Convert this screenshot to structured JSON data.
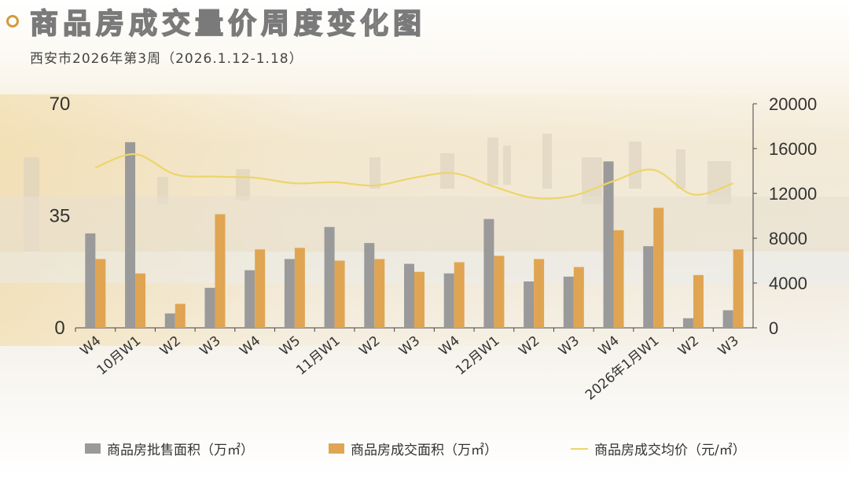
{
  "title": "商品房成交量价周度变化图",
  "subtitle": "西安市2026年第3周（2026.1.12-1.18）",
  "colors": {
    "supply": "#9a9a9a",
    "deal": "#e0a552",
    "price": "#ecd56a",
    "accent": "#d39a3a"
  },
  "chart_data": {
    "type": "bar",
    "categories": [
      "W4",
      "10月W1",
      "W2",
      "W3",
      "W4",
      "W5",
      "11月W1",
      "W2",
      "W3",
      "W4",
      "12月W1",
      "W2",
      "W3",
      "W4",
      "2026年1月W1",
      "W2",
      "W3"
    ],
    "series": [
      {
        "name": "商品房批售面积（万㎡）",
        "type": "bar",
        "axis": "left",
        "values": [
          29.5,
          58,
          4.5,
          12.5,
          18,
          21.5,
          31.5,
          26.5,
          20,
          17,
          34,
          14.5,
          16,
          52,
          25.5,
          3,
          5.5
        ]
      },
      {
        "name": "商品房成交面积（万㎡）",
        "type": "bar",
        "axis": "left",
        "values": [
          21.5,
          17,
          7.5,
          35.5,
          24.5,
          25,
          21,
          21.5,
          17.5,
          20.5,
          22.5,
          21.5,
          19,
          30.5,
          37.5,
          16.5,
          24.5
        ]
      },
      {
        "name": "商品房成交均价（元/㎡）",
        "type": "line",
        "axis": "right",
        "values": [
          14300,
          15500,
          13700,
          13500,
          13400,
          12900,
          13000,
          12700,
          13400,
          13800,
          12600,
          11600,
          11800,
          13100,
          14100,
          11900,
          12900
        ]
      }
    ],
    "ylim": [
      0,
      70
    ],
    "y_ticks": [
      "0",
      "35",
      "70"
    ],
    "y2lim": [
      0,
      20000
    ],
    "y2_ticks": [
      "0",
      "4000",
      "8000",
      "12000",
      "16000",
      "20000"
    ],
    "legend_position": "bottom",
    "grid": false
  }
}
